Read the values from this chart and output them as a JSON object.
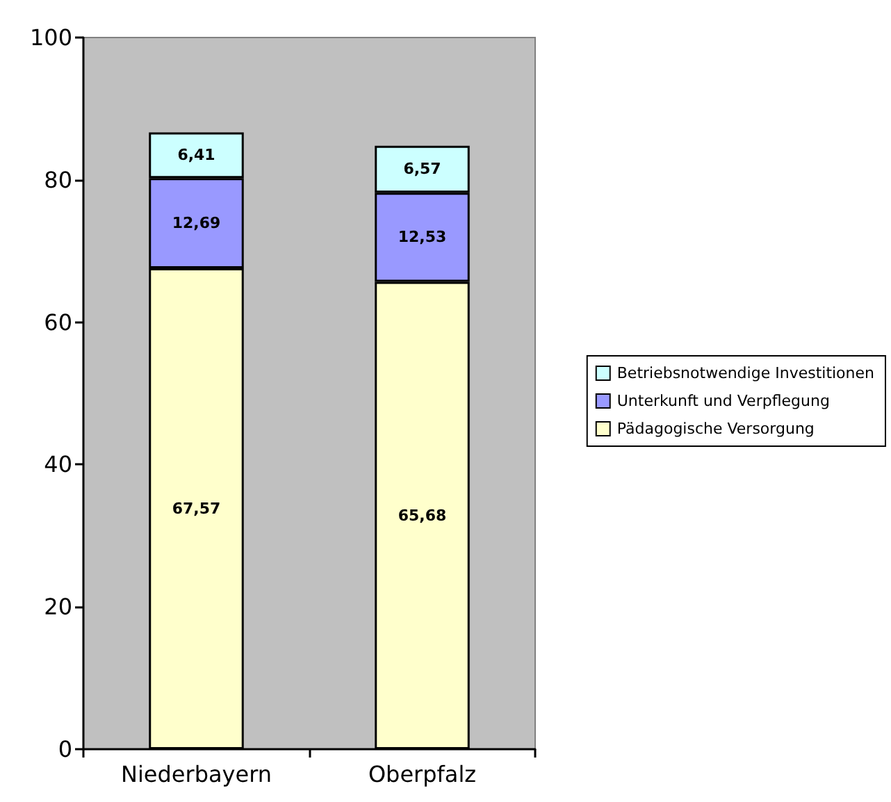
{
  "chart_data": {
    "type": "bar",
    "stacked": true,
    "categories": [
      "Niederbayern",
      "Oberpfalz"
    ],
    "series": [
      {
        "name": "Pädagogische Versorgung",
        "color": "#ffffcc",
        "values": [
          67.57,
          65.68
        ],
        "value_labels": [
          "67,57",
          "65,68"
        ]
      },
      {
        "name": "Unterkunft und Verpflegung",
        "color": "#9999ff",
        "values": [
          12.69,
          12.53
        ],
        "value_labels": [
          "12,69",
          "12,53"
        ]
      },
      {
        "name": "Betriebsnotwendige Investitionen",
        "color": "#ccffff",
        "values": [
          6.41,
          6.57
        ],
        "value_labels": [
          "6,41",
          "6,57"
        ]
      }
    ],
    "ylim": [
      0,
      100
    ],
    "yticks": [
      0,
      20,
      40,
      60,
      80,
      100
    ],
    "grid": false,
    "legend": "right"
  }
}
